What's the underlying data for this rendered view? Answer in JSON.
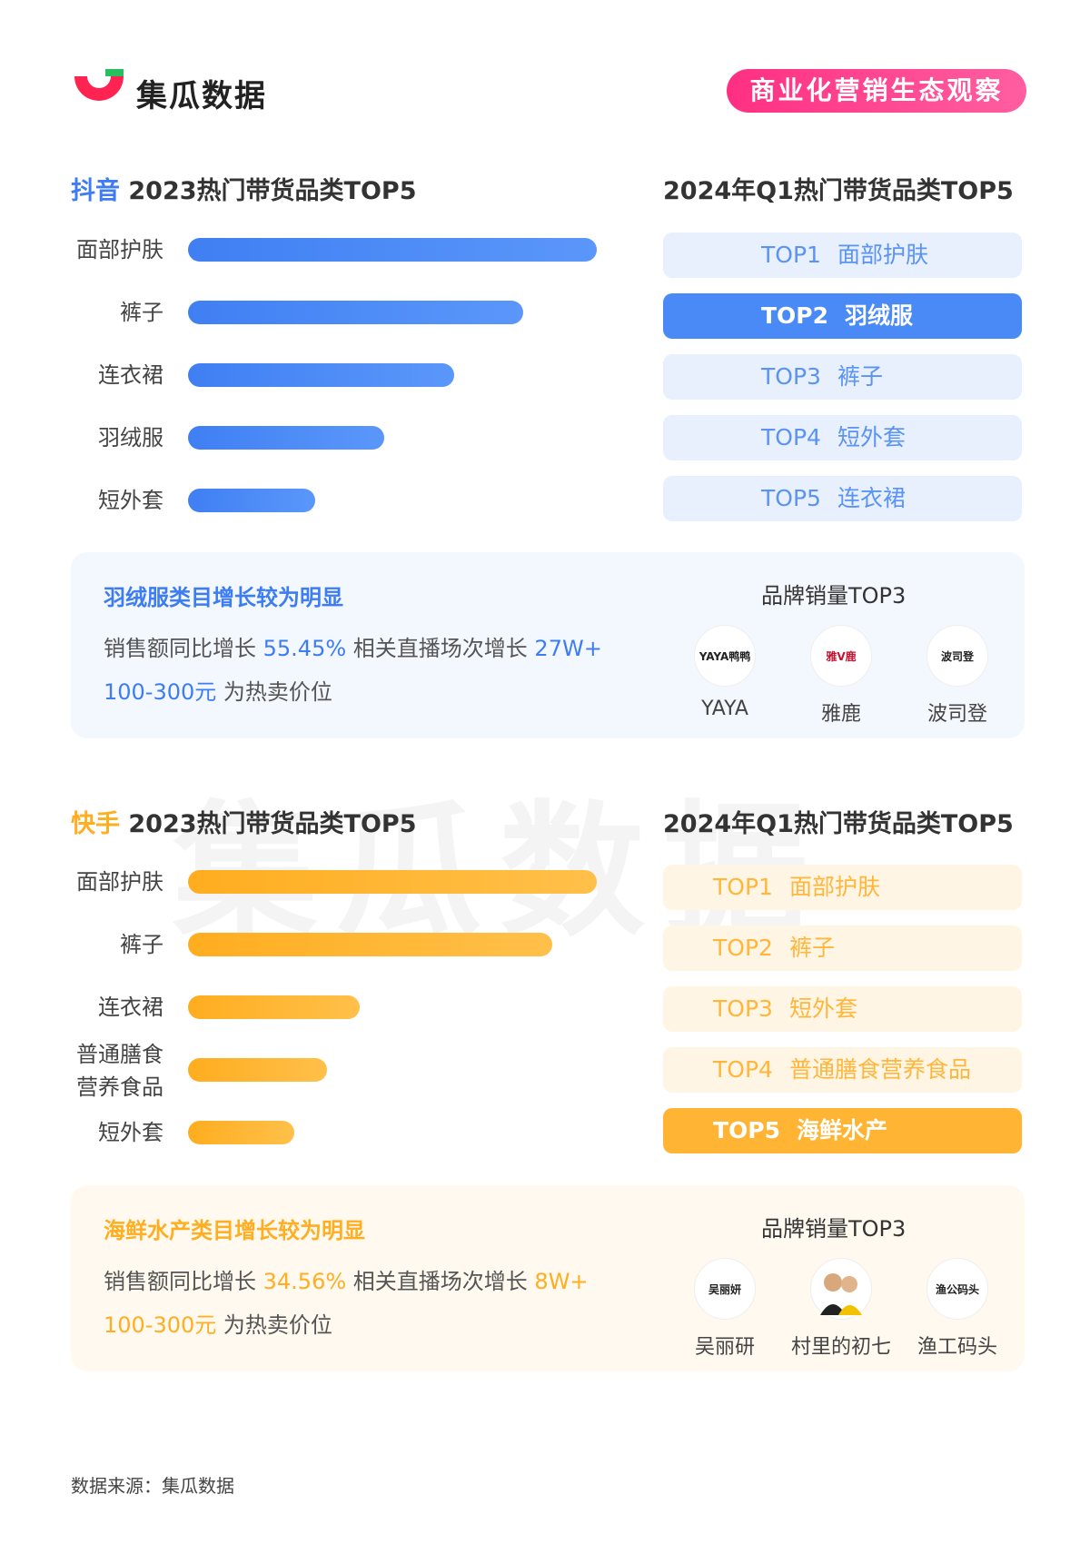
{
  "header": {
    "brand": "集瓜数据",
    "tag": "商业化营销生态观察"
  },
  "watermark": "集瓜数据",
  "douyin": {
    "platform": "抖音",
    "title_rest": " 2023热门带货品类TOP5",
    "q1_title": "2024年Q1热门带货品类TOP5",
    "chart_data": {
      "type": "bar",
      "categories": [
        "面部护肤",
        "裤子",
        "连衣裙",
        "羽绒服",
        "短外套"
      ],
      "values": [
        100,
        82,
        65,
        48,
        31
      ],
      "color": "#3d7cf2"
    },
    "ranking": [
      {
        "rank": "TOP1",
        "name": "面部护肤",
        "highlight": false
      },
      {
        "rank": "TOP2",
        "name": "羽绒服",
        "highlight": true
      },
      {
        "rank": "TOP3",
        "name": "裤子",
        "highlight": false
      },
      {
        "rank": "TOP4",
        "name": "短外套",
        "highlight": false
      },
      {
        "rank": "TOP5",
        "name": "连衣裙",
        "highlight": false
      }
    ],
    "info": {
      "title": "羽绒服类目增长较为明显",
      "l1_a": "销售额同比增长 ",
      "l1_b": "55.45%",
      "l1_c": "  相关直播场次增长 ",
      "l1_d": "27W+",
      "l2_a": "100-300元",
      "l2_b": " 为热卖价位",
      "brand_head": "品牌销量TOP3",
      "brands": [
        {
          "logo": "YAYA鸭鸭",
          "name": "YAYA"
        },
        {
          "logo": "雅V鹿",
          "name": "雅鹿"
        },
        {
          "logo": "波司登",
          "name": "波司登"
        }
      ]
    }
  },
  "kuaishou": {
    "platform": "快手",
    "title_rest": " 2023热门带货品类TOP5",
    "q1_title": "2024年Q1热门带货品类TOP5",
    "chart_data": {
      "type": "bar",
      "categories": [
        "面部护肤",
        "裤子",
        "连衣裙",
        "普通膳食营养食品",
        "短外套"
      ],
      "values": [
        100,
        89,
        42,
        34,
        26
      ],
      "color": "#ffae21"
    },
    "ranking": [
      {
        "rank": "TOP1",
        "name": "面部护肤",
        "highlight": false
      },
      {
        "rank": "TOP2",
        "name": "裤子",
        "highlight": false
      },
      {
        "rank": "TOP3",
        "name": "短外套",
        "highlight": false
      },
      {
        "rank": "TOP4",
        "name": "普通膳食营养食品",
        "highlight": false
      },
      {
        "rank": "TOP5",
        "name": "海鲜水产",
        "highlight": true
      }
    ],
    "info": {
      "title": "海鲜水产类目增长较为明显",
      "l1_a": "销售额同比增长 ",
      "l1_b": "34.56%",
      "l1_c": "  相关直播场次增长 ",
      "l1_d": "8W+",
      "l2_a": "100-300元",
      "l2_b": " 为热卖价位",
      "brand_head": "品牌销量TOP3",
      "brands": [
        {
          "logo": "吴丽妍",
          "name": "吴丽研"
        },
        {
          "logo": "",
          "name": "村里的初七"
        },
        {
          "logo": "渔公码头",
          "name": "渔工码头"
        }
      ]
    }
  },
  "source": "数据来源：集瓜数据"
}
